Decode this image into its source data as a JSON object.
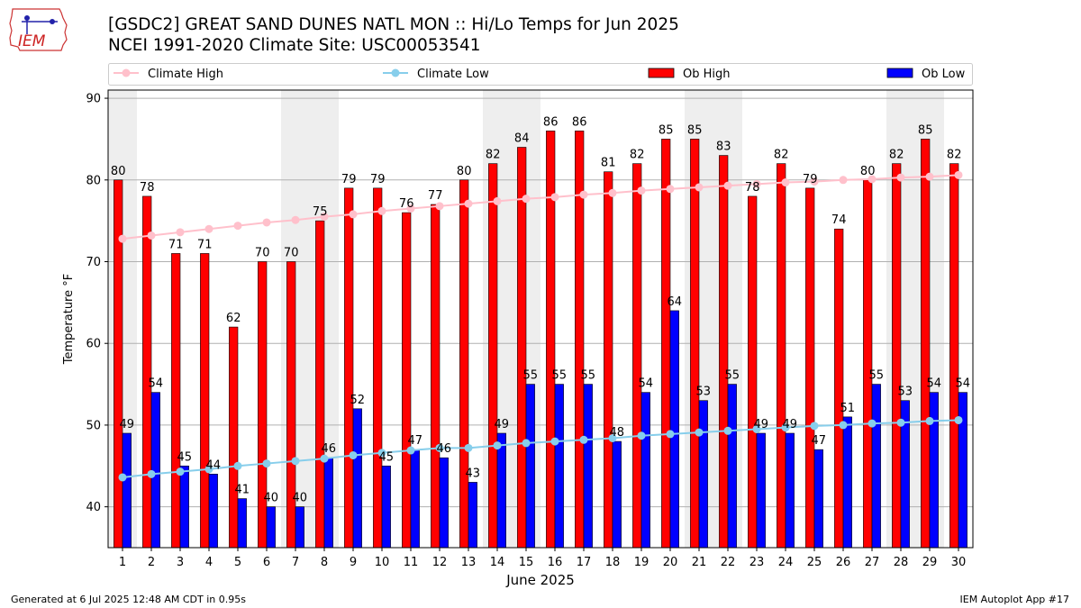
{
  "header": {
    "title": "[GSDC2] GREAT SAND DUNES NATL MON :: Hi/Lo Temps for Jun 2025",
    "subtitle": "NCEI 1991-2020 Climate Site: USC00053541",
    "logo_text": "IEM"
  },
  "footer": {
    "generated": "Generated at 6 Jul 2025 12:48 AM CDT in 0.95s",
    "app": "IEM Autoplot App #17"
  },
  "colors": {
    "ob_high": "#ff0000",
    "ob_low": "#0000ff",
    "climate_high": "#ffc0cb",
    "climate_low": "#87ceeb",
    "weekend_band": "#eeeeee"
  },
  "chart_data": {
    "type": "bar",
    "xlabel": "June 2025",
    "ylabel": "Temperature °F",
    "ylim": [
      35,
      91
    ],
    "yticks": [
      40,
      50,
      60,
      70,
      80,
      90
    ],
    "grid": true,
    "legend_position": "top",
    "legend": [
      "Climate High",
      "Climate Low",
      "Ob High",
      "Ob Low"
    ],
    "categories": [
      "1",
      "2",
      "3",
      "4",
      "5",
      "6",
      "7",
      "8",
      "9",
      "10",
      "11",
      "12",
      "13",
      "14",
      "15",
      "16",
      "17",
      "18",
      "19",
      "20",
      "21",
      "22",
      "23",
      "24",
      "25",
      "26",
      "27",
      "28",
      "29",
      "30"
    ],
    "weekend_days": [
      1,
      7,
      8,
      14,
      15,
      21,
      22,
      28,
      29
    ],
    "series": [
      {
        "name": "Ob High",
        "type": "bar",
        "values": [
          80,
          78,
          71,
          71,
          62,
          70,
          70,
          75,
          79,
          79,
          76,
          77,
          80,
          82,
          84,
          86,
          86,
          81,
          82,
          85,
          85,
          83,
          78,
          82,
          79,
          74,
          80,
          82,
          85,
          82
        ]
      },
      {
        "name": "Ob Low",
        "type": "bar",
        "values": [
          49,
          54,
          45,
          44,
          41,
          40,
          40,
          46,
          52,
          45,
          47,
          46,
          43,
          49,
          55,
          55,
          55,
          48,
          54,
          64,
          53,
          55,
          49,
          49,
          47,
          51,
          55,
          53,
          54,
          54
        ]
      },
      {
        "name": "Climate High",
        "type": "line",
        "values": [
          72.8,
          73.2,
          73.6,
          74.0,
          74.4,
          74.8,
          75.1,
          75.5,
          75.8,
          76.2,
          76.5,
          76.8,
          77.1,
          77.4,
          77.7,
          77.9,
          78.2,
          78.4,
          78.7,
          78.9,
          79.1,
          79.3,
          79.5,
          79.7,
          79.8,
          80.0,
          80.1,
          80.3,
          80.4,
          80.6
        ]
      },
      {
        "name": "Climate Low",
        "type": "line",
        "values": [
          43.6,
          44.0,
          44.3,
          44.6,
          45.0,
          45.3,
          45.6,
          45.9,
          46.3,
          46.6,
          46.9,
          47.2,
          47.2,
          47.5,
          47.8,
          48.0,
          48.2,
          48.4,
          48.7,
          48.9,
          49.1,
          49.3,
          49.5,
          49.7,
          49.9,
          50.0,
          50.2,
          50.3,
          50.5,
          50.6
        ]
      }
    ]
  }
}
